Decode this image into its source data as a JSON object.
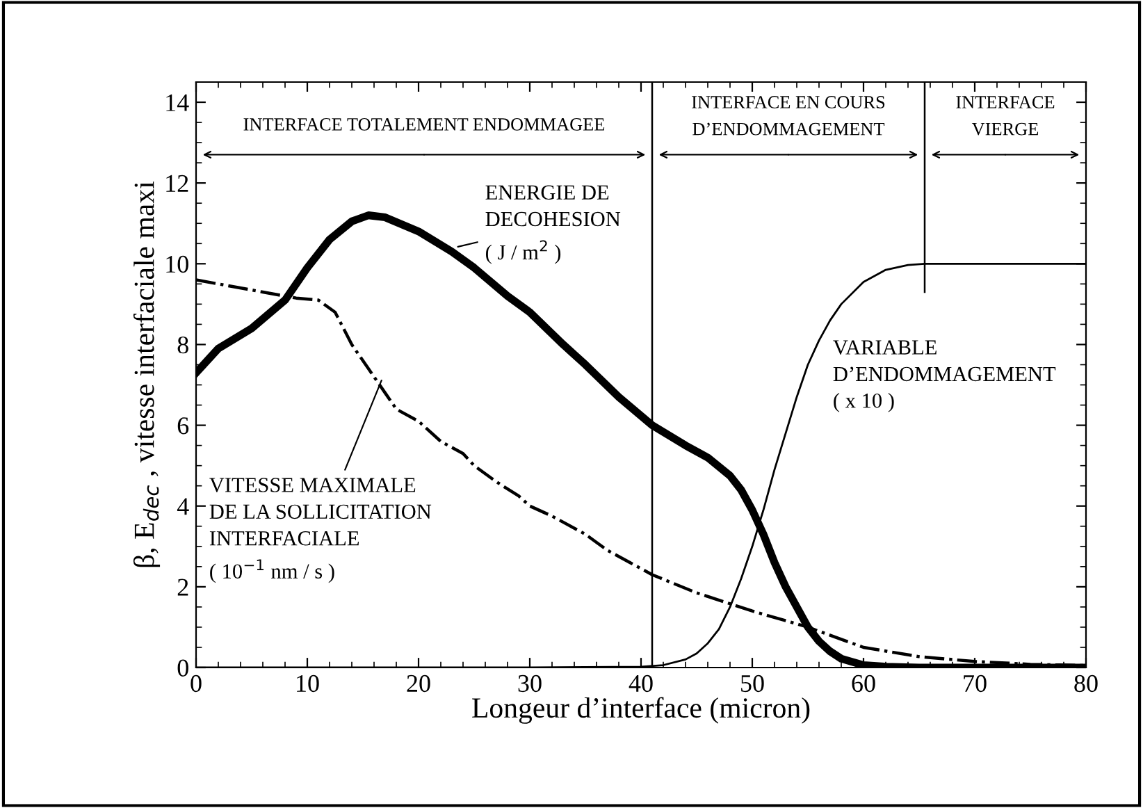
{
  "chart_data": {
    "type": "line",
    "xlabel": "Longeur d’interface (micron)",
    "ylabel": "β, E$_{dec}$ , vitesse interfaciale maxi",
    "xlim": [
      0,
      80
    ],
    "xticks": [
      0,
      10,
      20,
      30,
      40,
      50,
      60,
      70,
      80
    ],
    "ylim": [
      0,
      14.5
    ],
    "yticks": [
      0,
      2,
      4,
      6,
      8,
      10,
      12,
      14
    ],
    "grid": false,
    "legend": false,
    "marker": "none",
    "series": [
      {
        "color": "#000000",
        "line_style": "solid",
        "x": [
          0,
          2,
          5,
          8,
          10,
          12,
          14,
          15.5,
          17,
          20,
          23,
          25,
          28,
          30,
          33,
          35,
          38,
          41,
          44,
          46,
          48,
          49,
          50,
          51,
          52,
          53,
          54,
          55,
          56,
          57,
          58,
          60,
          62,
          65,
          70,
          80
        ],
        "values": [
          7.3,
          7.9,
          8.4,
          9.1,
          9.9,
          10.6,
          11.05,
          11.2,
          11.15,
          10.8,
          10.3,
          9.9,
          9.2,
          8.8,
          8.0,
          7.5,
          6.7,
          6.0,
          5.5,
          5.2,
          4.75,
          4.4,
          3.9,
          3.3,
          2.6,
          2.0,
          1.5,
          1.0,
          0.65,
          0.4,
          0.22,
          0.06,
          0.02,
          0,
          0,
          0
        ]
      },
      {
        "color": "#000000",
        "line_style": "dashdot",
        "x": [
          0,
          3,
          6,
          9,
          11,
          12.5,
          14,
          15.5,
          17,
          18,
          20,
          22,
          24,
          25,
          27,
          29,
          30,
          32,
          35,
          37,
          39,
          41,
          45,
          50,
          55,
          60,
          65,
          70,
          75,
          80
        ],
        "values": [
          9.6,
          9.45,
          9.3,
          9.15,
          9.1,
          8.8,
          8.0,
          7.4,
          6.8,
          6.4,
          6.1,
          5.6,
          5.3,
          5.0,
          4.6,
          4.25,
          4.0,
          3.75,
          3.3,
          2.9,
          2.6,
          2.3,
          1.85,
          1.4,
          1.0,
          0.5,
          0.27,
          0.15,
          0.08,
          0.05
        ]
      },
      {
        "color": "#000000",
        "line_style": "solid",
        "x": [
          0,
          30,
          40,
          42,
          44,
          45,
          46,
          47,
          48,
          49,
          50,
          51,
          52,
          53,
          54,
          55,
          56,
          57,
          58,
          60,
          62,
          64,
          65.5,
          80
        ],
        "values": [
          0,
          0,
          0.02,
          0.06,
          0.2,
          0.35,
          0.6,
          0.95,
          1.5,
          2.2,
          3.0,
          3.9,
          4.9,
          5.8,
          6.7,
          7.5,
          8.1,
          8.6,
          9.0,
          9.55,
          9.85,
          9.97,
          10,
          10
        ]
      }
    ],
    "ref_lines": [
      {
        "axis": "x",
        "value": 41,
        "label": null
      },
      {
        "axis": "x",
        "value": 65.5,
        "label": null
      }
    ],
    "annotations": [
      "INTERFACE TOTALEMENT ENDOMMAGEE",
      "INTERFACE EN COURS\nD’ENDOMMAGEMENT",
      "INTERFACE\nVIERGE",
      {
        "text": "ENERGIE DE\nDECOHESION\n( J / m$^{2}$ )",
        "x": 23.2,
        "y": 10.4
      },
      {
        "text": "VITESSE MAXIMALE\nDE LA SOLLICITATION\nINTERFACIALE\n( 10$^{−1}$ nm / s )",
        "x": 16.8,
        "y": 7.2
      },
      {
        "text": "VARIABLE\nD’ENDOMMAGEMENT\n( x 10 )",
        "x": 56.2,
        "y": 8.6
      }
    ]
  }
}
